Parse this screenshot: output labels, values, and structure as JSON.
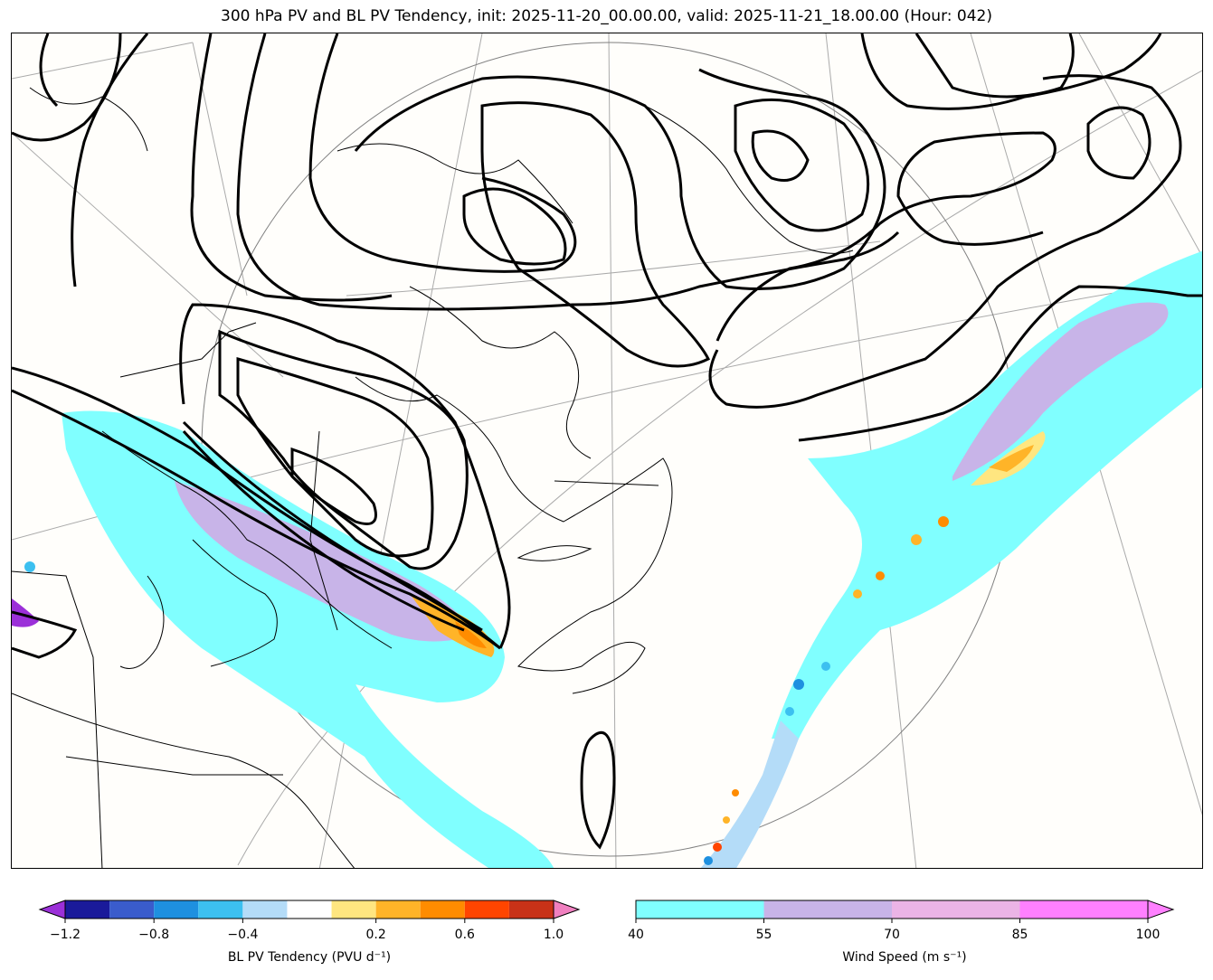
{
  "title": "300 hPa PV and BL PV Tendency, init: 2025-11-20_00.00.00, valid: 2025-11-21_18.00.00 (Hour: 042)",
  "map": {
    "fields": {
      "wind_fill_color": "#80ffff",
      "wind_fill_color_strong": "#c8b4e8",
      "pv_contour_color": "#000000",
      "coastline_color": "#000000",
      "graticule_color": "#aaaaaa"
    }
  },
  "colorbars": {
    "pv_tendency": {
      "label": "BL PV Tendency (PVU d⁻¹)",
      "ticks": [
        "−1.2",
        "−0.8",
        "−0.4",
        "0.2",
        "0.6",
        "1.0"
      ],
      "colors": [
        "#1a1a9a",
        "#3a5ccc",
        "#1e90e0",
        "#3cc0f0",
        "#b4dcf8",
        "#ffffff",
        "#ffe680",
        "#ffb428",
        "#ff8c00",
        "#ff4500",
        "#c83218"
      ],
      "under_color": "#9b30d8",
      "over_color": "#f080c0"
    },
    "wind_speed": {
      "label": "Wind Speed (m s⁻¹)",
      "ticks": [
        "40",
        "55",
        "70",
        "85",
        "100"
      ],
      "colors": [
        "#80ffff",
        "#c8b4e8",
        "#ebb4e6",
        "#ff80ff"
      ],
      "over_color": "#ff80ff"
    }
  }
}
